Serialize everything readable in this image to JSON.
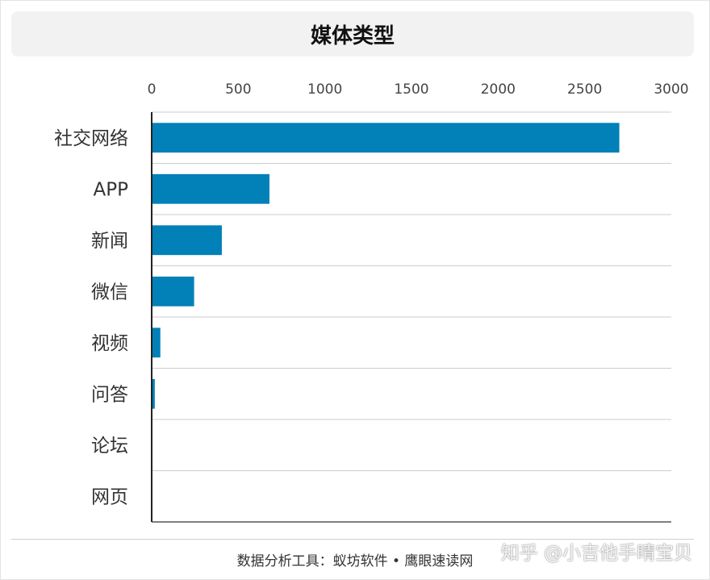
{
  "chart_data": {
    "type": "bar",
    "orientation": "horizontal",
    "title": "媒体类型",
    "categories": [
      "社交网络",
      "APP",
      "新闻",
      "微信",
      "视频",
      "问答",
      "论坛",
      "网页"
    ],
    "values": [
      2700,
      680,
      405,
      245,
      50,
      18,
      0,
      0
    ],
    "xlim": [
      0,
      3000
    ],
    "xticks": [
      "0",
      "500",
      "1000",
      "1500",
      "2000",
      "2500",
      "3000"
    ],
    "x_axis_position": "top",
    "grid": "horizontal",
    "bar_color": "#0280b8"
  },
  "footer": {
    "source": "数据分析工具：蚁坊软件 • 鹰眼速读网"
  },
  "watermark": {
    "text": "知乎 @小吉他手晴宝贝"
  }
}
